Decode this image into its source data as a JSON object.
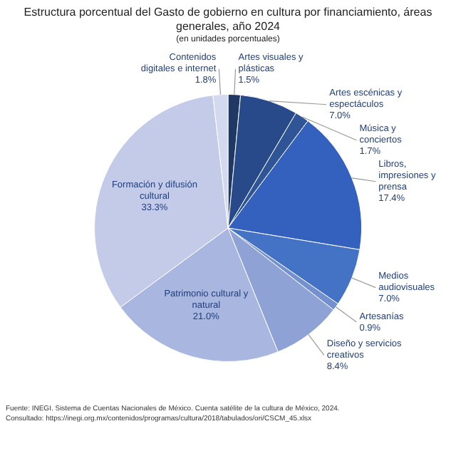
{
  "chart_data": {
    "type": "pie",
    "title": "Estructura porcentual del Gasto de gobierno en cultura por financiamiento, áreas generales, año 2024",
    "subtitle": "(en unidades porcentuales)",
    "categories": [
      "Artes visuales y plásticas",
      "Artes escénicas y espectáculos",
      "Música y conciertos",
      "Libros, impresiones y prensa",
      "Medios audiovisuales",
      "Artesanías",
      "Diseño y servicios creativos",
      "Patrimonio cultural y natural",
      "Formación y difusión cultural",
      "Contenidos digitales e internet"
    ],
    "values": [
      1.5,
      7.0,
      1.7,
      17.4,
      7.0,
      0.9,
      8.4,
      21.0,
      33.3,
      1.8
    ],
    "value_labels": [
      "1.5%",
      "7.0%",
      "1.7%",
      "17.4%",
      "7.0%",
      "0.9%",
      "8.4%",
      "21.0%",
      "33.3%",
      "1.8%"
    ],
    "colors": [
      "#1f3864",
      "#284a8a",
      "#2f5597",
      "#3461bd",
      "#4472c4",
      "#7390d0",
      "#8fa2d6",
      "#a9b6df",
      "#c3cbe8",
      "#d3d9ef"
    ],
    "annotations": [
      "Fuente: INEGI. Sistema de Cuentas Nacionales de México. Cuenta satélite de la cultura de México, 2024.",
      "Consultado: https://inegi.org.mx/contenidos/programas/cultura/2018/tabulados/ori/CSCM_45.xlsx"
    ]
  }
}
